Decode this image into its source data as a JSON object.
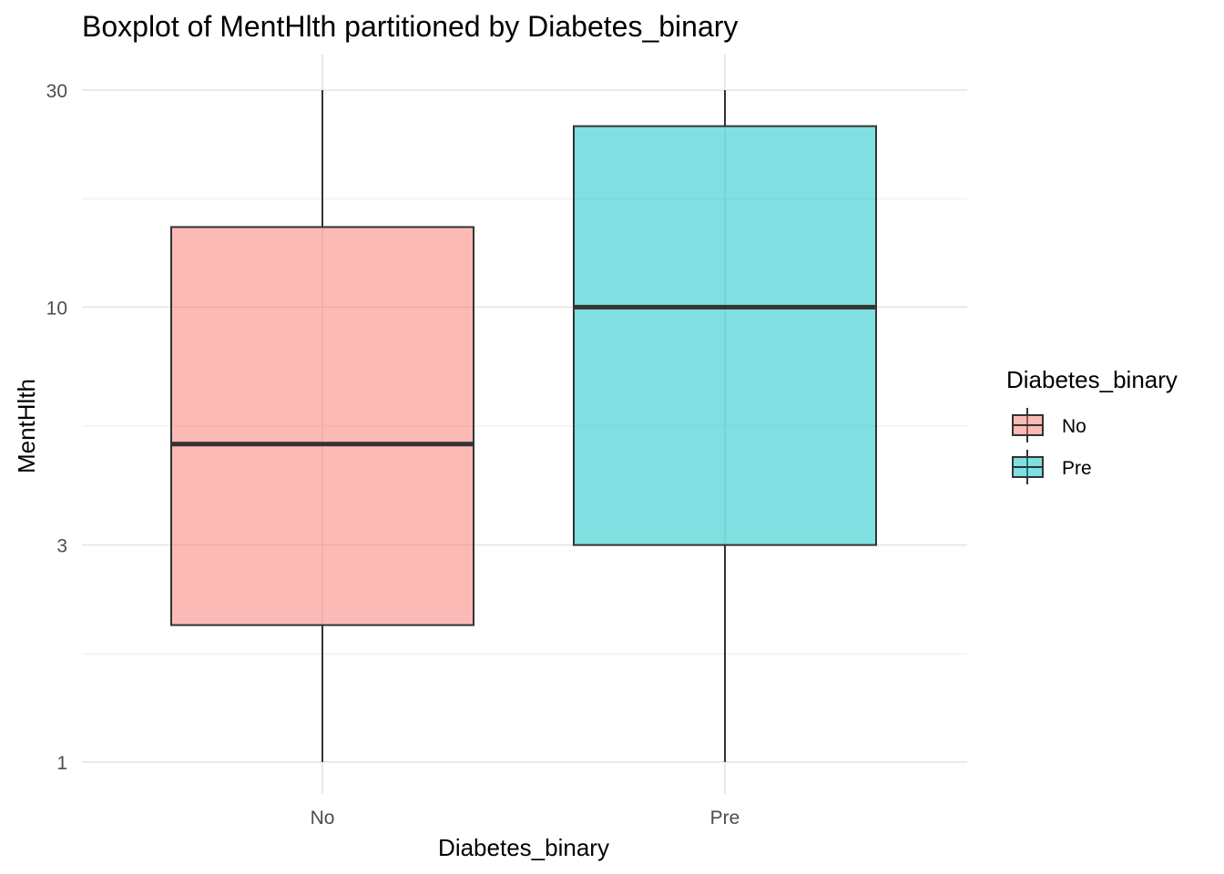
{
  "chart_data": {
    "type": "boxplot",
    "title": "Boxplot of MentHlth partitioned by Diabetes_binary",
    "xlabel": "Diabetes_binary",
    "ylabel": "MentHlth",
    "y_scale": "log10",
    "ylim": [
      1,
      30
    ],
    "y_ticks": [
      1,
      3,
      10,
      30
    ],
    "y_tick_labels": [
      "1",
      "3",
      "10",
      "30"
    ],
    "y_minor_ticks": [
      1.73,
      5.48,
      17.3
    ],
    "categories": [
      "No",
      "Pre"
    ],
    "boxes": [
      {
        "category": "No",
        "min": 1,
        "q1": 2,
        "median": 5,
        "q3": 15,
        "max": 30,
        "color": "#F8766D"
      },
      {
        "category": "Pre",
        "min": 1,
        "q1": 3,
        "median": 10,
        "q3": 25,
        "max": 30,
        "color": "#00BFC4"
      }
    ],
    "grid": true,
    "legend": {
      "title": "Diabetes_binary",
      "placement": "right",
      "items": [
        {
          "label": "No",
          "color": "#F8766D"
        },
        {
          "label": "Pre",
          "color": "#00BFC4"
        }
      ]
    }
  }
}
